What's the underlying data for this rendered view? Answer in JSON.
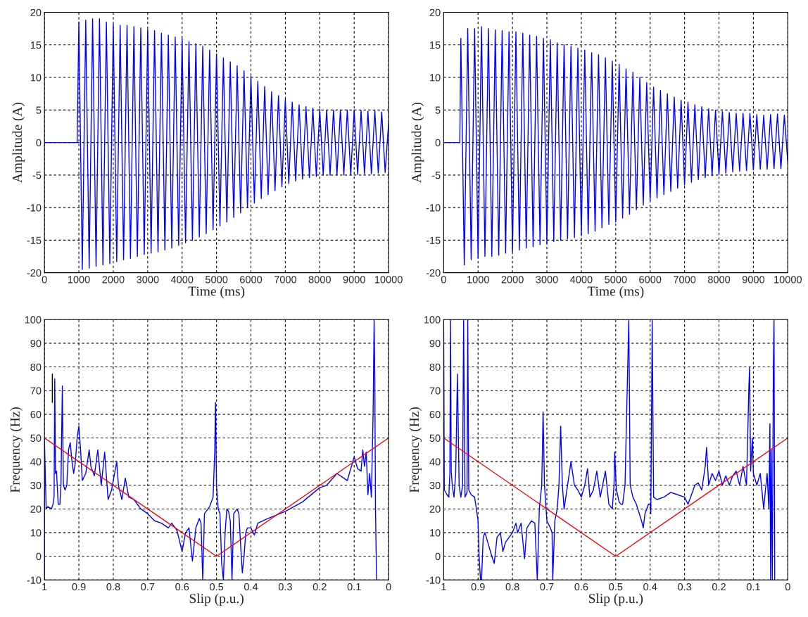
{
  "chart_data": [
    {
      "type": "line",
      "xlabel": "Time (ms)",
      "ylabel": "Amplitude (A)",
      "xlim": [
        0,
        10000
      ],
      "ylim": [
        -20,
        20
      ],
      "xticks": [
        0,
        1000,
        2000,
        3000,
        4000,
        5000,
        6000,
        7000,
        8000,
        9000,
        10000
      ],
      "yticks": [
        -20,
        -15,
        -10,
        -5,
        0,
        5,
        10,
        15,
        20
      ],
      "grid": true,
      "series": [
        {
          "color": "#0000ff",
          "x": [
            0,
            950,
            1000,
            1100,
            1200,
            1300,
            1400,
            1500,
            1600,
            1700,
            1800,
            1900,
            2000,
            2100,
            2200,
            2300,
            2400,
            2500,
            2600,
            2700,
            2800,
            2900,
            3000,
            3100,
            3200,
            3300,
            3400,
            3500,
            3600,
            3700,
            3800,
            3900,
            4000,
            4100,
            4200,
            4300,
            4400,
            4500,
            4600,
            4700,
            4800,
            4900,
            5000,
            5100,
            5200,
            5300,
            5400,
            5500,
            5600,
            5700,
            5800,
            5900,
            6000,
            6100,
            6200,
            6300,
            6400,
            6500,
            6600,
            6700,
            6800,
            6900,
            7000,
            7100,
            7200,
            7300,
            7400,
            7500,
            7600,
            7700,
            7800,
            7900,
            8000,
            8100,
            8200,
            8300,
            8400,
            8500,
            8600,
            8700,
            8800,
            8900,
            9000,
            9100,
            9200,
            9300,
            9400,
            9500,
            9600,
            9700,
            9800,
            9900,
            10000
          ],
          "values": [
            0,
            0,
            18.5,
            -19.5,
            18.8,
            -19.3,
            19,
            -19,
            19,
            -18.8,
            18.5,
            -18.6,
            18.2,
            -18.3,
            18,
            -18,
            18,
            -17.8,
            17.8,
            -17.5,
            17.6,
            -17.2,
            17.4,
            -17,
            17.2,
            -16.8,
            16.8,
            -16.5,
            16.5,
            -16.2,
            16.2,
            -15.8,
            16,
            -15.4,
            15.5,
            -15,
            15.2,
            -14.5,
            14.8,
            -14,
            14.2,
            -13.4,
            13.6,
            -12.8,
            13,
            -12.2,
            12.4,
            -11.5,
            11.8,
            -10.8,
            11,
            -10,
            10.2,
            -9.3,
            9.4,
            -8.6,
            8.6,
            -8,
            7.8,
            -7.4,
            7.2,
            -6.8,
            6.6,
            -6.3,
            6.2,
            -5.9,
            5.8,
            -5.6,
            5.5,
            -5.4,
            5.3,
            -5.2,
            5.1,
            -5,
            5,
            -5,
            5,
            -5,
            5,
            -5,
            5,
            -5,
            5,
            -4.9,
            4.9,
            -4.8,
            4.8,
            -4.8,
            4.9,
            -4.7,
            4.7,
            -4.6,
            3
          ]
        }
      ]
    },
    {
      "type": "line",
      "xlabel": "Time (ms)",
      "ylabel": "Amplitude (A)",
      "xlim": [
        0,
        10000
      ],
      "ylim": [
        -20,
        20
      ],
      "xticks": [
        0,
        1000,
        2000,
        3000,
        4000,
        5000,
        6000,
        7000,
        8000,
        9000,
        10000
      ],
      "yticks": [
        -20,
        -15,
        -10,
        -5,
        0,
        5,
        10,
        15,
        20
      ],
      "grid": true,
      "series": [
        {
          "color": "#0000ff",
          "x": [
            0,
            470,
            500,
            600,
            700,
            800,
            900,
            1000,
            1100,
            1200,
            1300,
            1400,
            1500,
            1600,
            1700,
            1800,
            1900,
            2000,
            2100,
            2200,
            2300,
            2400,
            2500,
            2600,
            2700,
            2800,
            2900,
            3000,
            3100,
            3200,
            3300,
            3400,
            3500,
            3600,
            3700,
            3800,
            3900,
            4000,
            4100,
            4200,
            4300,
            4400,
            4500,
            4600,
            4700,
            4800,
            4900,
            5000,
            5100,
            5200,
            5300,
            5400,
            5500,
            5600,
            5700,
            5800,
            5900,
            6000,
            6100,
            6200,
            6300,
            6400,
            6500,
            6600,
            6700,
            6800,
            6900,
            7000,
            7100,
            7200,
            7300,
            7400,
            7500,
            7600,
            7700,
            7800,
            7900,
            8000,
            8100,
            8200,
            8300,
            8400,
            8500,
            8600,
            8700,
            8800,
            8900,
            9000,
            9100,
            9200,
            9300,
            9400,
            9500,
            9600,
            9700,
            9800,
            9900,
            10000
          ],
          "values": [
            0,
            0,
            16,
            -18.8,
            17.5,
            -18,
            17.5,
            -17.7,
            17.8,
            -17.5,
            17.5,
            -17.5,
            17.3,
            -17.3,
            17.2,
            -17,
            17,
            -16.8,
            17,
            -16.5,
            16.8,
            -16.2,
            16.5,
            -16,
            16.3,
            -15.7,
            16,
            -15.5,
            15.8,
            -15.2,
            15.3,
            -15,
            15,
            -14.8,
            14.8,
            -14.6,
            14.5,
            -14.3,
            14.2,
            -14,
            13.8,
            -13.6,
            13.5,
            -13.1,
            13,
            -12.6,
            12.5,
            -12.2,
            12,
            -11.6,
            11.3,
            -11,
            10.8,
            -10.3,
            10,
            -9.6,
            9.2,
            -9,
            8.5,
            -8.5,
            8,
            -8,
            7.5,
            -7.5,
            7,
            -7,
            6.5,
            -6.5,
            6.2,
            -6.1,
            5.8,
            -5.7,
            5.5,
            -5.4,
            5.2,
            -5.1,
            5,
            -4.9,
            4.8,
            -4.7,
            4.6,
            -4.5,
            4.5,
            -4.4,
            4.5,
            -4.3,
            4.5,
            -4.2,
            4.3,
            -4.1,
            4.2,
            -4.1,
            4.3,
            -4,
            4.4,
            -4,
            4.2,
            -3
          ]
        }
      ]
    },
    {
      "type": "line",
      "xlabel": "Slip (p.u.)",
      "ylabel": "Frequency (Hz)",
      "xlim": [
        1,
        0
      ],
      "ylim": [
        -10,
        100
      ],
      "xticks": [
        1,
        0.9,
        0.8,
        0.7,
        0.6,
        0.5,
        0.4,
        0.3,
        0.2,
        0.1,
        0
      ],
      "yticks": [
        -10,
        0,
        10,
        20,
        30,
        40,
        50,
        60,
        70,
        80,
        90,
        100
      ],
      "grid": true,
      "series": [
        {
          "color": "#0000ff",
          "x": [
            1,
            1,
            0.995,
            0.99,
            0.98,
            0.975,
            0.972,
            0.97,
            0.968,
            0.965,
            0.96,
            0.955,
            0.952,
            0.948,
            0.945,
            0.94,
            0.935,
            0.93,
            0.925,
            0.92,
            0.915,
            0.91,
            0.905,
            0.9,
            0.895,
            0.89,
            0.88,
            0.87,
            0.865,
            0.855,
            0.845,
            0.835,
            0.825,
            0.815,
            0.805,
            0.79,
            0.785,
            0.775,
            0.765,
            0.755,
            0.74,
            0.72,
            0.7,
            0.68,
            0.66,
            0.64,
            0.63,
            0.615,
            0.6,
            0.59,
            0.58,
            0.57,
            0.56,
            0.55,
            0.545,
            0.54,
            0.535,
            0.52,
            0.51,
            0.505,
            0.503,
            0.5,
            0.495,
            0.49,
            0.485,
            0.48,
            0.475,
            0.47,
            0.465,
            0.46,
            0.455,
            0.45,
            0.44,
            0.435,
            0.43,
            0.425,
            0.42,
            0.415,
            0.41,
            0.4,
            0.39,
            0.38,
            0.35,
            0.3,
            0.25,
            0.2,
            0.18,
            0.15,
            0.12,
            0.1,
            0.09,
            0.08,
            0.075,
            0.07,
            0.065,
            0.06,
            0.055,
            0.05,
            0.045,
            0.042,
            0.04,
            0.038,
            0.035
          ],
          "values": [
            -10,
            50,
            20,
            21,
            20,
            22,
            25,
            75,
            35,
            36,
            22,
            22,
            30,
            72,
            30,
            28,
            30,
            45,
            48,
            40,
            35,
            40,
            50,
            55,
            45,
            32,
            35,
            45,
            38,
            34,
            45,
            30,
            44,
            24,
            28,
            40,
            30,
            24,
            33,
            25,
            24,
            20,
            18,
            15,
            14,
            12,
            14,
            11,
            2,
            10,
            12,
            -2,
            12,
            16,
            14,
            -10,
            18,
            21,
            25,
            45,
            65,
            30,
            20,
            18,
            -3,
            -10,
            10,
            20,
            19,
            15,
            -10,
            18,
            20,
            18,
            5,
            -7,
            0,
            10,
            12,
            12,
            9,
            14,
            16,
            19,
            23,
            29,
            30,
            35,
            32,
            42,
            37,
            36,
            45,
            38,
            44,
            26,
            35,
            25,
            60,
            100,
            75,
            20,
            -10
          ]
        },
        {
          "color": "#000000",
          "x": [
            0.977,
            0.977
          ],
          "values": [
            65,
            77
          ]
        },
        {
          "color": "#ff0000",
          "x": [
            1,
            0.5,
            0
          ],
          "values": [
            50,
            0,
            50
          ]
        }
      ]
    },
    {
      "type": "line",
      "xlabel": "Slip (p.u.)",
      "ylabel": "Frequency (Hz)",
      "xlim": [
        1,
        0
      ],
      "ylim": [
        -10,
        100
      ],
      "xticks": [
        1,
        0.9,
        0.8,
        0.7,
        0.6,
        0.5,
        0.4,
        0.3,
        0.2,
        0.1,
        0
      ],
      "yticks": [
        -10,
        0,
        10,
        20,
        30,
        40,
        50,
        60,
        70,
        80,
        90,
        100
      ],
      "grid": true,
      "series": [
        {
          "color": "#0000ff",
          "x": [
            1,
            0.998,
            0.99,
            0.985,
            0.982,
            0.98,
            0.978,
            0.975,
            0.97,
            0.965,
            0.96,
            0.955,
            0.95,
            0.945,
            0.942,
            0.938,
            0.932,
            0.93,
            0.927,
            0.92,
            0.91,
            0.905,
            0.9,
            0.897,
            0.893,
            0.89,
            0.885,
            0.88,
            0.87,
            0.86,
            0.853,
            0.845,
            0.835,
            0.828,
            0.82,
            0.81,
            0.8,
            0.79,
            0.785,
            0.775,
            0.765,
            0.758,
            0.745,
            0.735,
            0.728,
            0.722,
            0.715,
            0.711,
            0.707,
            0.7,
            0.69,
            0.685,
            0.683,
            0.677,
            0.67,
            0.665,
            0.66,
            0.655,
            0.65,
            0.64,
            0.63,
            0.62,
            0.61,
            0.6,
            0.59,
            0.582,
            0.575,
            0.565,
            0.555,
            0.545,
            0.53,
            0.52,
            0.51,
            0.505,
            0.503,
            0.498,
            0.49,
            0.485,
            0.48,
            0.473,
            0.462,
            0.458,
            0.45,
            0.44,
            0.425,
            0.42,
            0.415,
            0.405,
            0.4,
            0.398,
            0.394,
            0.39,
            0.38,
            0.36,
            0.34,
            0.32,
            0.3,
            0.29,
            0.28,
            0.27,
            0.26,
            0.25,
            0.24,
            0.236,
            0.23,
            0.22,
            0.21,
            0.2,
            0.19,
            0.18,
            0.17,
            0.16,
            0.15,
            0.14,
            0.13,
            0.12,
            0.113,
            0.111,
            0.108,
            0.103,
            0.1,
            0.09,
            0.08,
            0.07,
            0.065,
            0.06,
            0.055,
            0.052,
            0.05,
            0.048,
            0.045,
            0.042,
            0.04,
            0.038
          ],
          "values": [
            100,
            28,
            26,
            25,
            35,
            100,
            36,
            30,
            25,
            35,
            77,
            30,
            25,
            30,
            100,
            25,
            27,
            100,
            28,
            26,
            25,
            20,
            15,
            0,
            -10,
            -10,
            8,
            10,
            5,
            0,
            -3,
            8,
            10,
            2,
            6,
            8,
            10,
            14,
            10,
            14,
            -1,
            12,
            15,
            14,
            -10,
            20,
            30,
            61,
            30,
            15,
            12,
            10,
            -10,
            15,
            20,
            30,
            55,
            30,
            20,
            30,
            40,
            30,
            28,
            25,
            30,
            37,
            25,
            28,
            36,
            25,
            36,
            22,
            20,
            30,
            44,
            28,
            23,
            22,
            22,
            30,
            100,
            30,
            25,
            22,
            15,
            12,
            18,
            22,
            22,
            18,
            100,
            25,
            24,
            25,
            27,
            26,
            25,
            22,
            26,
            30,
            31,
            28,
            38,
            46,
            30,
            35,
            32,
            36,
            30,
            34,
            30,
            34,
            36,
            30,
            38,
            30,
            72,
            80,
            36,
            50,
            35,
            30,
            35,
            20,
            28,
            35,
            20,
            56,
            -10,
            45,
            -10,
            80,
            100,
            -10
          ]
        },
        {
          "color": "#ff0000",
          "x": [
            1,
            0.5,
            0
          ],
          "values": [
            50,
            0,
            50
          ]
        }
      ]
    }
  ]
}
